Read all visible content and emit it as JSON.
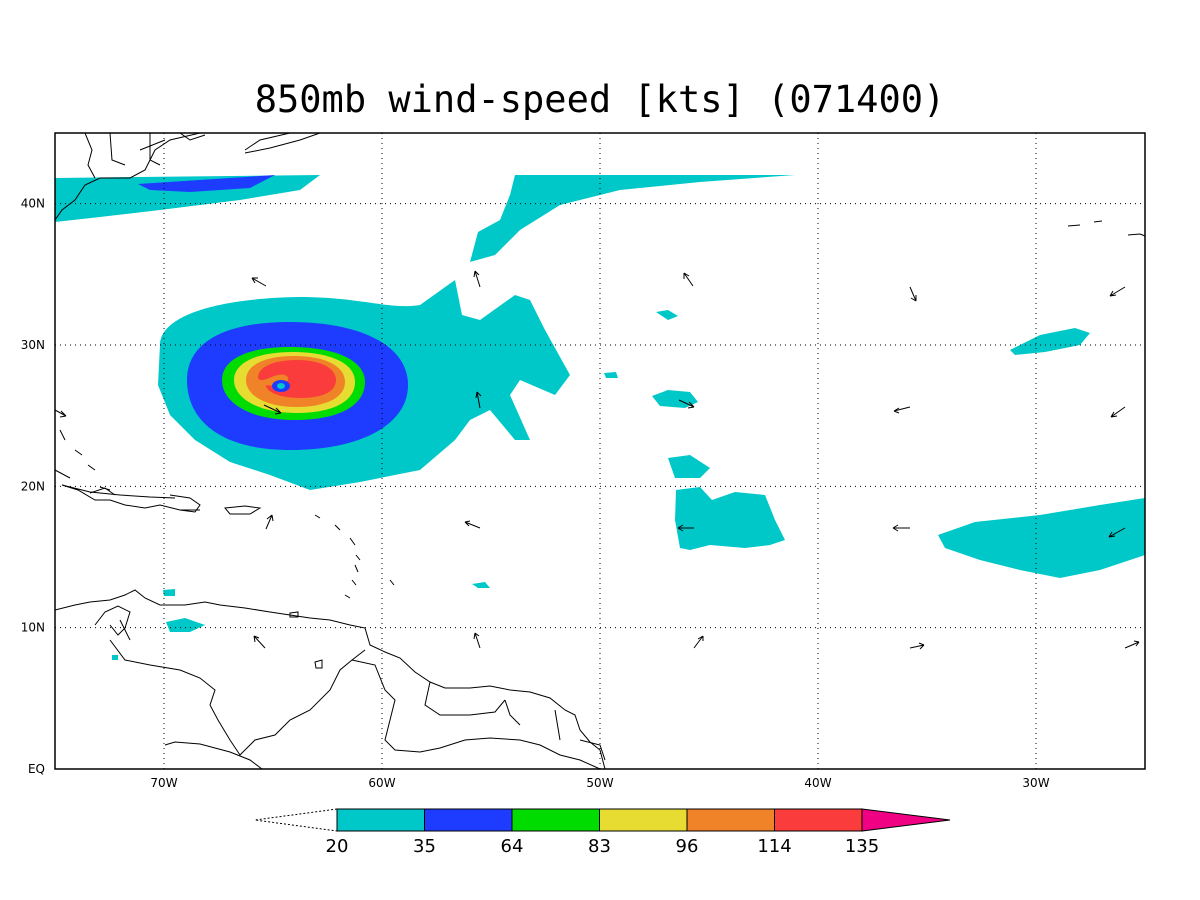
{
  "title": "850mb wind-speed [kts] (071400)",
  "map": {
    "lon_range": [
      -75,
      -25
    ],
    "lat_range": [
      0,
      45
    ],
    "lon_ticks": [
      {
        "value": -70,
        "label": "70W"
      },
      {
        "value": -60,
        "label": "60W"
      },
      {
        "value": -50,
        "label": "50W"
      },
      {
        "value": -40,
        "label": "40W"
      },
      {
        "value": -30,
        "label": "30W"
      }
    ],
    "lat_ticks": [
      {
        "value": 0,
        "label": "EQ"
      },
      {
        "value": 10,
        "label": "10N"
      },
      {
        "value": 20,
        "label": "20N"
      },
      {
        "value": 30,
        "label": "30N"
      },
      {
        "value": 40,
        "label": "40N"
      }
    ],
    "grid": true
  },
  "colorbar": {
    "levels": [
      "20",
      "35",
      "64",
      "83",
      "96",
      "114",
      "135"
    ],
    "colors": [
      "#00c8c8",
      "#1e3cff",
      "#00dc00",
      "#e6dc32",
      "#f08228",
      "#fa3c3c",
      "#f00082"
    ]
  }
}
